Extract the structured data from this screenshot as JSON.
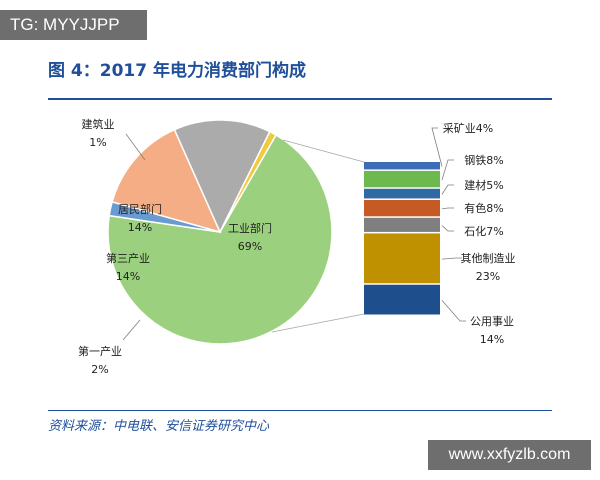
{
  "watermark_top_left": "TG: MYYJJPP",
  "watermark_bottom_right": "www.xxfyzlb.com",
  "title": "图 4：2017 年电力消费部门构成",
  "source": "资料来源：中电联、安信证券研究中心",
  "chart_data": [
    {
      "type": "pie",
      "title": "",
      "slices": [
        {
          "name": "工业部门",
          "value_label": "69%",
          "value": 69,
          "color": "#9bd07e"
        },
        {
          "name": "第一产业",
          "value_label": "2%",
          "value": 2,
          "color": "#6a9bd0"
        },
        {
          "name": "第三产业",
          "value_label": "14%",
          "value": 14,
          "color": "#f4ad85"
        },
        {
          "name": "居民部门",
          "value_label": "14%",
          "value": 14,
          "color": "#ababab"
        },
        {
          "name": "建筑业",
          "value_label": "1%",
          "value": 1,
          "color": "#f0c93c"
        }
      ]
    },
    {
      "type": "bar",
      "title": "",
      "stacked": true,
      "parent": "工业部门",
      "segments": [
        {
          "name": "采矿业",
          "value_label": "4%",
          "value": 4,
          "color": "#3d6eb5"
        },
        {
          "name": "钢铁",
          "value_label": "8%",
          "value": 8,
          "color": "#6db84f"
        },
        {
          "name": "建材",
          "value_label": "5%",
          "value": 5,
          "color": "#2f6aa5"
        },
        {
          "name": "有色",
          "value_label": "8%",
          "value": 8,
          "color": "#c55a25"
        },
        {
          "name": "石化",
          "value_label": "7%",
          "value": 7,
          "color": "#7f7f7f"
        },
        {
          "name": "其他制造业",
          "value_label": "23%",
          "value": 23,
          "color": "#bf9000"
        },
        {
          "name": "公用事业",
          "value_label": "14%",
          "value": 14,
          "color": "#1f4e8c"
        }
      ]
    }
  ]
}
